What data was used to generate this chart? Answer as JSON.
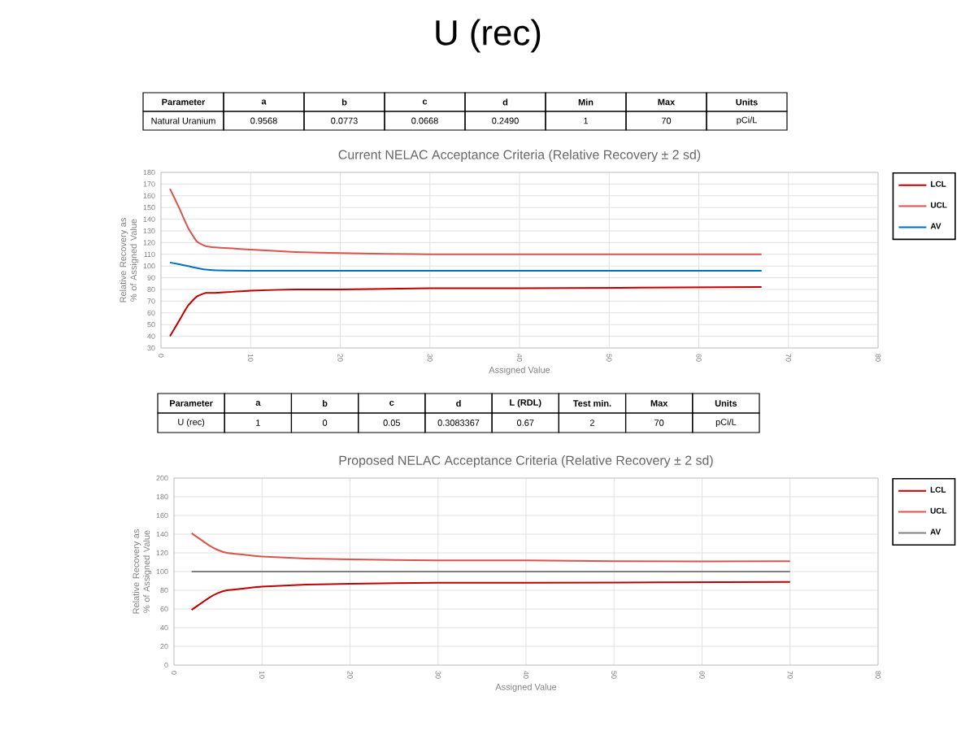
{
  "chart_data": [
    {
      "type": "line",
      "title": "Current NELAC Acceptance Criteria (Relative  Recovery  ± 2 sd)",
      "xlabel": "Assigned Value",
      "ylabel": "Relative Recovery as % of Assigned Value",
      "annotations": [
        "U (rec)",
        "Parameter",
        "a",
        "b",
        "c",
        "d",
        "Min",
        "Max",
        "Units",
        "Natural Uranium",
        "0.9568",
        "0.0773",
        "0.0668",
        "0.2490",
        "1",
        "70",
        "pCi/L"
      ],
      "xlim": [
        0,
        80
      ],
      "xticks": [
        0,
        10,
        20,
        30,
        40,
        50,
        60,
        70,
        80
      ],
      "ylim": [
        30,
        180
      ],
      "yticks": [
        30,
        40,
        50,
        60,
        70,
        80,
        90,
        100,
        110,
        120,
        130,
        140,
        150,
        160,
        170,
        180
      ],
      "grid": true,
      "legend": "right",
      "marker": "none",
      "line_style": "solid",
      "series": [
        {
          "name": "LCL",
          "color": "#c00000",
          "x": [
            1,
            2,
            3,
            4,
            5,
            6,
            8,
            10,
            15,
            20,
            30,
            40,
            67
          ],
          "values": [
            40,
            53,
            66,
            74,
            77,
            77,
            78,
            79,
            80,
            80,
            81,
            81,
            82
          ]
        },
        {
          "name": "UCL",
          "color": "#d9534f",
          "x": [
            1,
            2,
            3,
            4,
            5,
            6,
            8,
            10,
            15,
            20,
            30,
            40,
            50,
            67
          ],
          "values": [
            166,
            150,
            133,
            121,
            117,
            116,
            115,
            114,
            112,
            111,
            110,
            110,
            110,
            110
          ]
        },
        {
          "name": "AV",
          "color": "#0070c0",
          "x": [
            1,
            3,
            5,
            10,
            67
          ],
          "values": [
            103,
            100,
            97,
            96,
            96
          ]
        }
      ]
    },
    {
      "type": "line",
      "title": "Proposed NELAC Acceptance Criteria (Relative  Recovery  ± 2 sd)",
      "xlabel": "Assigned Value",
      "ylabel": "Relative Recovery as % of Assigned Value",
      "annotations": [
        "Parameter",
        "a",
        "b",
        "c",
        "d",
        "L (RDL)",
        "Test min.",
        "Max",
        "Units",
        "U (rec)",
        "1",
        "0",
        "0.05",
        "0.3083367",
        "0.67",
        "2",
        "70",
        "pCi/L"
      ],
      "xlim": [
        0,
        80
      ],
      "xticks": [
        0,
        10,
        20,
        30,
        40,
        50,
        60,
        70,
        80
      ],
      "ylim": [
        0,
        200
      ],
      "yticks": [
        0,
        20,
        40,
        60,
        80,
        100,
        120,
        140,
        160,
        180,
        200
      ],
      "grid": true,
      "legend": "right",
      "marker": "none",
      "line_style": "solid",
      "series": [
        {
          "name": "LCL",
          "color": "#c00000",
          "x": [
            2,
            4,
            5,
            6,
            8,
            10,
            15,
            20,
            30,
            40,
            70
          ],
          "values": [
            59,
            72,
            77,
            80,
            82,
            84,
            86,
            87,
            88,
            88,
            89
          ]
        },
        {
          "name": "UCL",
          "color": "#d9534f",
          "x": [
            2,
            4,
            5,
            6,
            8,
            10,
            15,
            20,
            30,
            40,
            50,
            70
          ],
          "values": [
            141,
            128,
            123,
            120,
            118,
            116,
            114,
            113,
            112,
            112,
            111,
            111
          ]
        },
        {
          "name": "AV",
          "color": "#808080",
          "x": [
            2,
            70
          ],
          "values": [
            100,
            100
          ]
        }
      ]
    }
  ]
}
